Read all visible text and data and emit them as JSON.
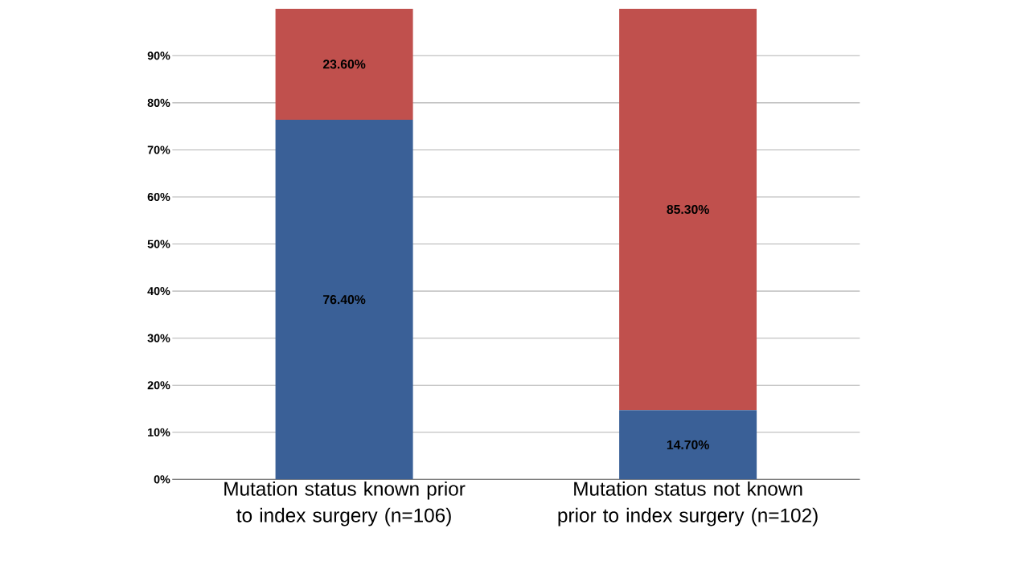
{
  "chart_data": {
    "type": "bar",
    "stacked": true,
    "categories": [
      "Mutation status known prior to index surgery (n=106)",
      "Mutation status not known prior to index surgery (n=102)"
    ],
    "series": [
      {
        "color": "#3a6097",
        "values": [
          76.4,
          14.7
        ],
        "value_labels": [
          "76.40%",
          "14.70%"
        ]
      },
      {
        "color": "#c0504d",
        "values": [
          23.6,
          85.3
        ],
        "value_labels": [
          "23.60%",
          "85.30%"
        ]
      }
    ],
    "ylim": [
      0,
      100
    ],
    "yticks": [
      {
        "value": 0,
        "label": "0%"
      },
      {
        "value": 10,
        "label": "10%"
      },
      {
        "value": 20,
        "label": "20%"
      },
      {
        "value": 30,
        "label": "30%"
      },
      {
        "value": 40,
        "label": "40%"
      },
      {
        "value": 50,
        "label": "50%"
      },
      {
        "value": 60,
        "label": "60%"
      },
      {
        "value": 70,
        "label": "70%"
      },
      {
        "value": 80,
        "label": "80%"
      },
      {
        "value": 90,
        "label": "90%"
      }
    ],
    "grid": "y"
  }
}
